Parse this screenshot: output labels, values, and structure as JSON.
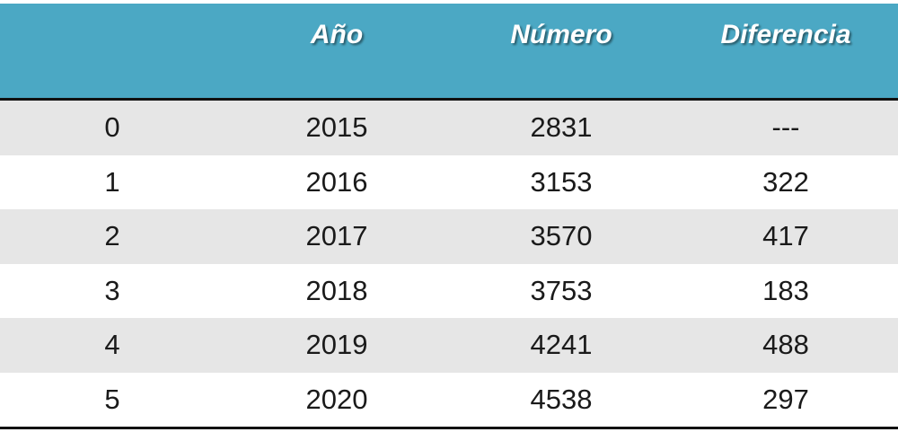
{
  "table": {
    "headers": [
      "Año",
      "Número",
      "Diferencia"
    ],
    "rows": [
      [
        0,
        2015,
        2831,
        "---"
      ],
      [
        1,
        2016,
        3153,
        322
      ],
      [
        2,
        2017,
        3570,
        417
      ],
      [
        3,
        2018,
        3753,
        183
      ],
      [
        4,
        2019,
        4241,
        488
      ],
      [
        5,
        2020,
        4538,
        297
      ]
    ]
  }
}
